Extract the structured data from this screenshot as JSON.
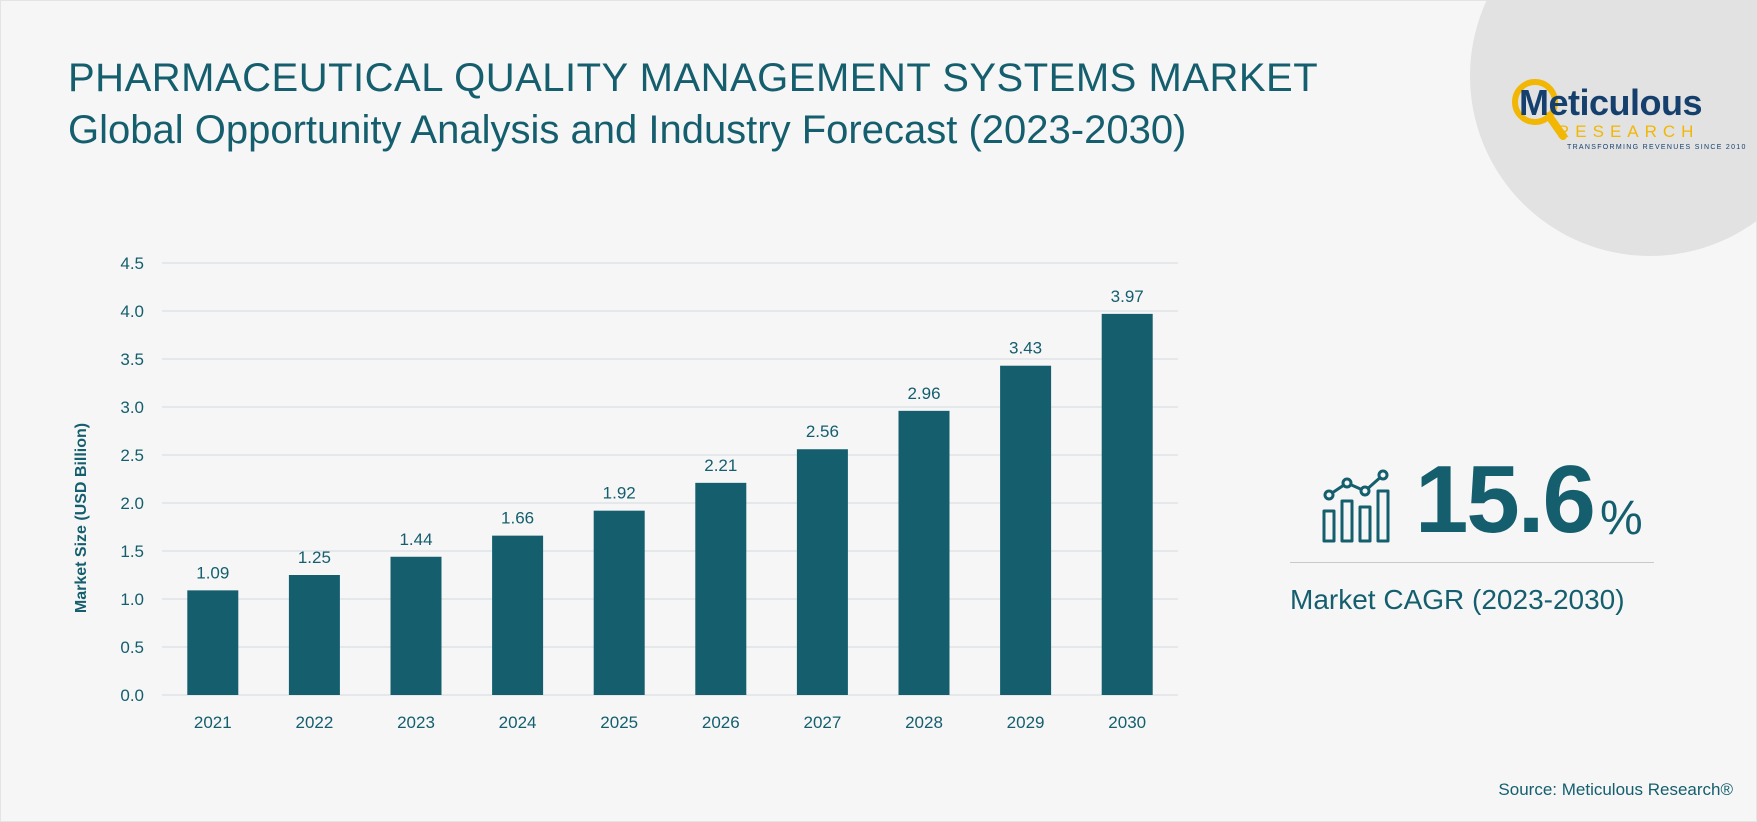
{
  "header": {
    "title": "PHARMACEUTICAL QUALITY MANAGEMENT SYSTEMS MARKET",
    "subtitle": "Global Opportunity Analysis and Industry Forecast (2023-2030)"
  },
  "logo": {
    "name": "Meticulous",
    "word": "RESEARCH",
    "tagline": "TRANSFORMING REVENUES SINCE 2010"
  },
  "chart_data": {
    "type": "bar",
    "categories": [
      "2021",
      "2022",
      "2023",
      "2024",
      "2025",
      "2026",
      "2027",
      "2028",
      "2029",
      "2030"
    ],
    "values": [
      1.09,
      1.25,
      1.44,
      1.66,
      1.92,
      2.21,
      2.56,
      2.96,
      3.43,
      3.97
    ],
    "data_labels": [
      "1.09",
      "1.25",
      "1.44",
      "1.66",
      "1.92",
      "2.21",
      "2.56",
      "2.96",
      "3.43",
      "3.97"
    ],
    "yticks": [
      "0.0",
      "0.5",
      "1.0",
      "1.5",
      "2.0",
      "2.5",
      "3.0",
      "3.5",
      "4.0",
      "4.5"
    ],
    "ylim": [
      0,
      4.5
    ],
    "ylabel": "Market Size (USD Billion)",
    "xlabel": "",
    "grid": true,
    "bar_color": "#145e6e"
  },
  "cagr": {
    "value": "15.6",
    "unit": "%",
    "label": "Market CAGR (2023-2030)",
    "icon": "growth-chart-icon"
  },
  "source": "Source: Meticulous Research®",
  "colors": {
    "primary": "#145e6e",
    "logo_blue": "#15406e",
    "logo_gold": "#f2b705",
    "background": "#f6f6f6"
  }
}
